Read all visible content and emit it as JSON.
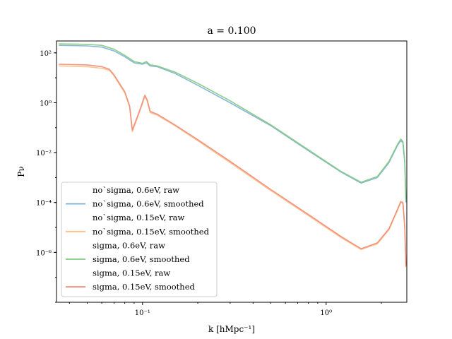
{
  "chart_data": {
    "type": "line",
    "title": "a = 0.100",
    "xlabel": "k [hMpc⁻¹]",
    "ylabel": "Pν",
    "xscale": "log",
    "yscale": "log",
    "xlim": [
      0.034,
      2.75
    ],
    "ylim": [
      1e-08,
      300
    ],
    "xticks": [
      0.1,
      1.0
    ],
    "xtick_labels": [
      "10⁻¹",
      "10⁰"
    ],
    "yticks": [
      100,
      1,
      0.01,
      0.0001,
      1e-06
    ],
    "ytick_labels": [
      "10²",
      "10⁰",
      "10⁻²",
      "10⁻⁴",
      "10⁻⁶"
    ],
    "grid": false,
    "legend_position": "lower-left",
    "series": [
      {
        "name": "no`sigma, 0.6eV, raw",
        "color": "none",
        "x": [],
        "y": []
      },
      {
        "name": "no`sigma, 0.6eV, smoothed",
        "color": "#7eb0d5",
        "x": [
          0.035,
          0.05,
          0.06,
          0.07,
          0.08,
          0.09,
          0.1,
          0.105,
          0.11,
          0.12,
          0.15,
          0.2,
          0.3,
          0.5,
          0.8,
          1.2,
          1.55,
          1.9,
          2.2,
          2.45,
          2.55,
          2.62,
          2.68,
          2.72
        ],
        "y": [
          200,
          190,
          170,
          120,
          70,
          40,
          35,
          40,
          30,
          28,
          15,
          5,
          1,
          0.12,
          0.012,
          0.0017,
          0.0006,
          0.001,
          0.004,
          0.02,
          0.03,
          0.025,
          0.004,
          0.0001
        ]
      },
      {
        "name": "no`sigma, 0.15eV, raw",
        "color": "none",
        "x": [],
        "y": []
      },
      {
        "name": "no`sigma, 0.15eV, smoothed",
        "color": "#fdbf86",
        "x": [
          0.035,
          0.05,
          0.06,
          0.066,
          0.07,
          0.08,
          0.085,
          0.088,
          0.097,
          0.103,
          0.106,
          0.11,
          0.12,
          0.15,
          0.2,
          0.3,
          0.5,
          0.8,
          1.2,
          1.55,
          1.9,
          2.2,
          2.45,
          2.55,
          2.62,
          2.68,
          2.72
        ],
        "y": [
          30,
          28,
          24,
          20,
          12,
          2.5,
          0.7,
          0.07,
          0.5,
          1.8,
          1.2,
          0.4,
          0.32,
          0.12,
          0.03,
          0.004,
          0.0003,
          3e-05,
          4e-06,
          1.3e-06,
          2.2e-06,
          8e-06,
          5e-05,
          0.0001,
          9e-05,
          1e-05,
          2.5e-07
        ]
      },
      {
        "name": "sigma, 0.6eV, raw",
        "color": "none",
        "x": [],
        "y": []
      },
      {
        "name": "sigma, 0.6eV, smoothed",
        "color": "#7fc97f",
        "x": [
          0.035,
          0.05,
          0.06,
          0.07,
          0.08,
          0.09,
          0.1,
          0.105,
          0.11,
          0.12,
          0.15,
          0.2,
          0.3,
          0.5,
          0.8,
          1.2,
          1.55,
          1.9,
          2.2,
          2.45,
          2.55,
          2.62,
          2.68,
          2.72
        ],
        "y": [
          230,
          220,
          200,
          140,
          80,
          45,
          38,
          45,
          33,
          30,
          17,
          6,
          1.2,
          0.13,
          0.013,
          0.0018,
          0.00065,
          0.0011,
          0.0045,
          0.022,
          0.035,
          0.028,
          0.0045,
          0.00012
        ]
      },
      {
        "name": "sigma, 0.15eV, raw",
        "color": "none",
        "x": [],
        "y": []
      },
      {
        "name": "sigma, 0.15eV, smoothed",
        "color": "#ef8a76",
        "x": [
          0.035,
          0.05,
          0.06,
          0.066,
          0.07,
          0.08,
          0.085,
          0.088,
          0.097,
          0.103,
          0.106,
          0.11,
          0.12,
          0.15,
          0.2,
          0.3,
          0.5,
          0.8,
          1.2,
          1.55,
          1.9,
          2.2,
          2.45,
          2.55,
          2.62,
          2.68,
          2.72
        ],
        "y": [
          35,
          33,
          28,
          22,
          13,
          2.8,
          0.75,
          0.08,
          0.55,
          2.0,
          1.3,
          0.45,
          0.35,
          0.13,
          0.033,
          0.0045,
          0.00033,
          3.3e-05,
          4.4e-06,
          1.4e-06,
          2.4e-06,
          9e-06,
          5.5e-05,
          0.00011,
          0.0001,
          1.1e-05,
          2.8e-07
        ]
      }
    ]
  }
}
